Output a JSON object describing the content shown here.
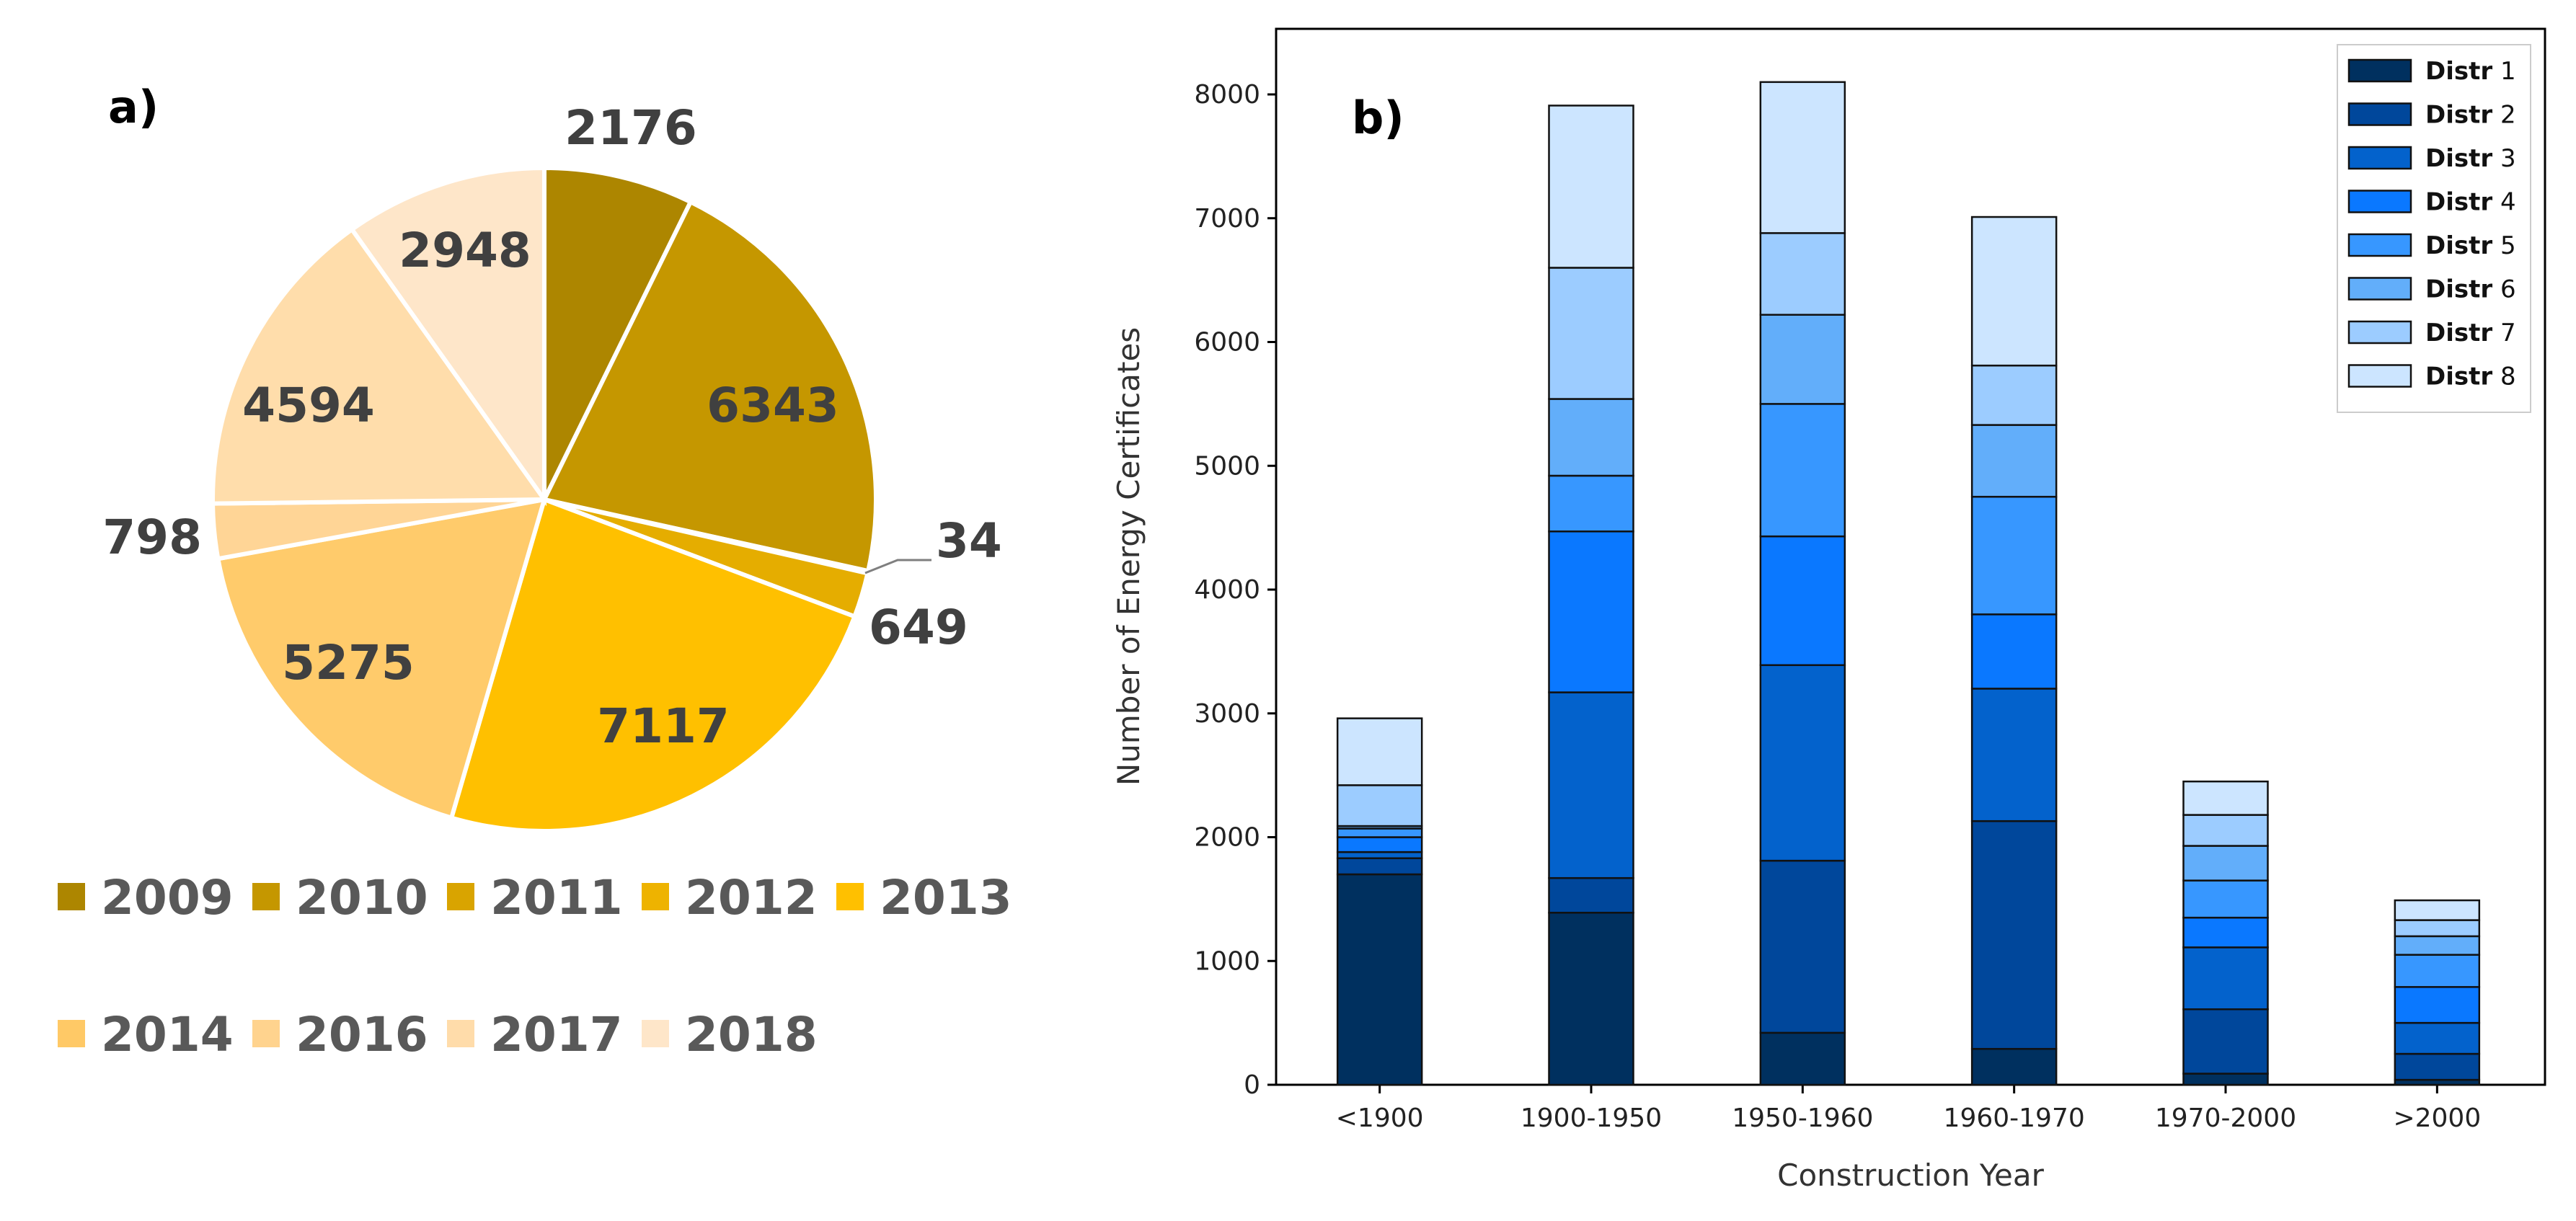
{
  "chart_data": [
    {
      "type": "pie",
      "panel_label": "a)",
      "categories": [
        "2009",
        "2010",
        "2011",
        "2012",
        "2013",
        "2014",
        "2016",
        "2017",
        "2018"
      ],
      "values": [
        2176,
        6343,
        34,
        649,
        7117,
        5275,
        798,
        4594,
        2948
      ],
      "labels": [
        "2176",
        "6343",
        "34",
        "649",
        "7117",
        "5275",
        "798",
        "4594",
        "2948"
      ],
      "colors": [
        "#ad8600",
        "#c59700",
        "#cc9c00",
        "#e5ad00",
        "#ffc000",
        "#ffcb6b",
        "#ffd596",
        "#ffddab",
        "#fee6c9"
      ],
      "legend": [
        "2009",
        "2010",
        "2011",
        "2012",
        "2013",
        "2014",
        "2016",
        "2017",
        "2018"
      ],
      "legend_colors": [
        "#ad8600",
        "#c59700",
        "#d9a400",
        "#eeb300",
        "#ffc000",
        "#ffc966",
        "#ffd38e",
        "#ffdcaa",
        "#fee6c9"
      ]
    },
    {
      "type": "bar",
      "stacked": true,
      "panel_label": "b)",
      "categories": [
        "<1900",
        "1900-1950",
        "1950-1960",
        "1960-1970",
        "1970-2000",
        ">2000"
      ],
      "xlabel": "Construction Year",
      "ylabel": "Number of Energy Certificates",
      "ylim": [
        0,
        8500
      ],
      "yticks": [
        "0",
        "1000",
        "2000",
        "3000",
        "4000",
        "5000",
        "6000",
        "7000",
        "8000"
      ],
      "legend_position": "top-right",
      "series": [
        {
          "name_bold": "Distr",
          "name_num": "1",
          "color": "#00305f",
          "values": [
            1700,
            1390,
            420,
            290,
            90,
            40
          ]
        },
        {
          "name_bold": "Distr",
          "name_num": "2",
          "color": "#00479b",
          "values": [
            130,
            280,
            1390,
            1840,
            520,
            210
          ]
        },
        {
          "name_bold": "Distr",
          "name_num": "3",
          "color": "#0362cc",
          "values": [
            50,
            1500,
            1580,
            1070,
            500,
            250
          ]
        },
        {
          "name_bold": "Distr",
          "name_num": "4",
          "color": "#0a78ff",
          "values": [
            120,
            1300,
            1040,
            600,
            240,
            290
          ]
        },
        {
          "name_bold": "Distr",
          "name_num": "5",
          "color": "#3797ff",
          "values": [
            70,
            450,
            1070,
            950,
            300,
            260
          ]
        },
        {
          "name_bold": "Distr",
          "name_num": "6",
          "color": "#62aefa",
          "values": [
            20,
            620,
            720,
            580,
            280,
            150
          ]
        },
        {
          "name_bold": "Distr",
          "name_num": "7",
          "color": "#9cccff",
          "values": [
            330,
            1060,
            660,
            480,
            250,
            130
          ]
        },
        {
          "name_bold": "Distr",
          "name_num": "8",
          "color": "#cce5ff",
          "values": [
            540,
            1310,
            1220,
            1200,
            270,
            160
          ]
        }
      ]
    }
  ]
}
